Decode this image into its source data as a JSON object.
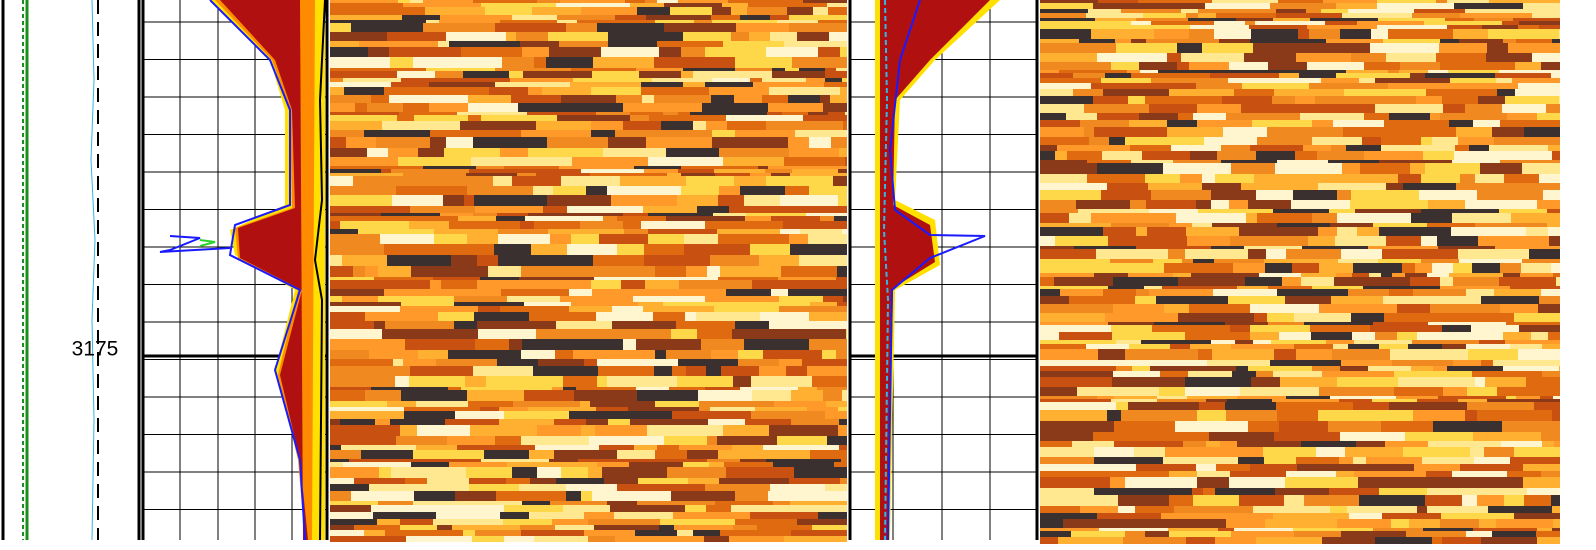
{
  "depth_label": "3175"
}
